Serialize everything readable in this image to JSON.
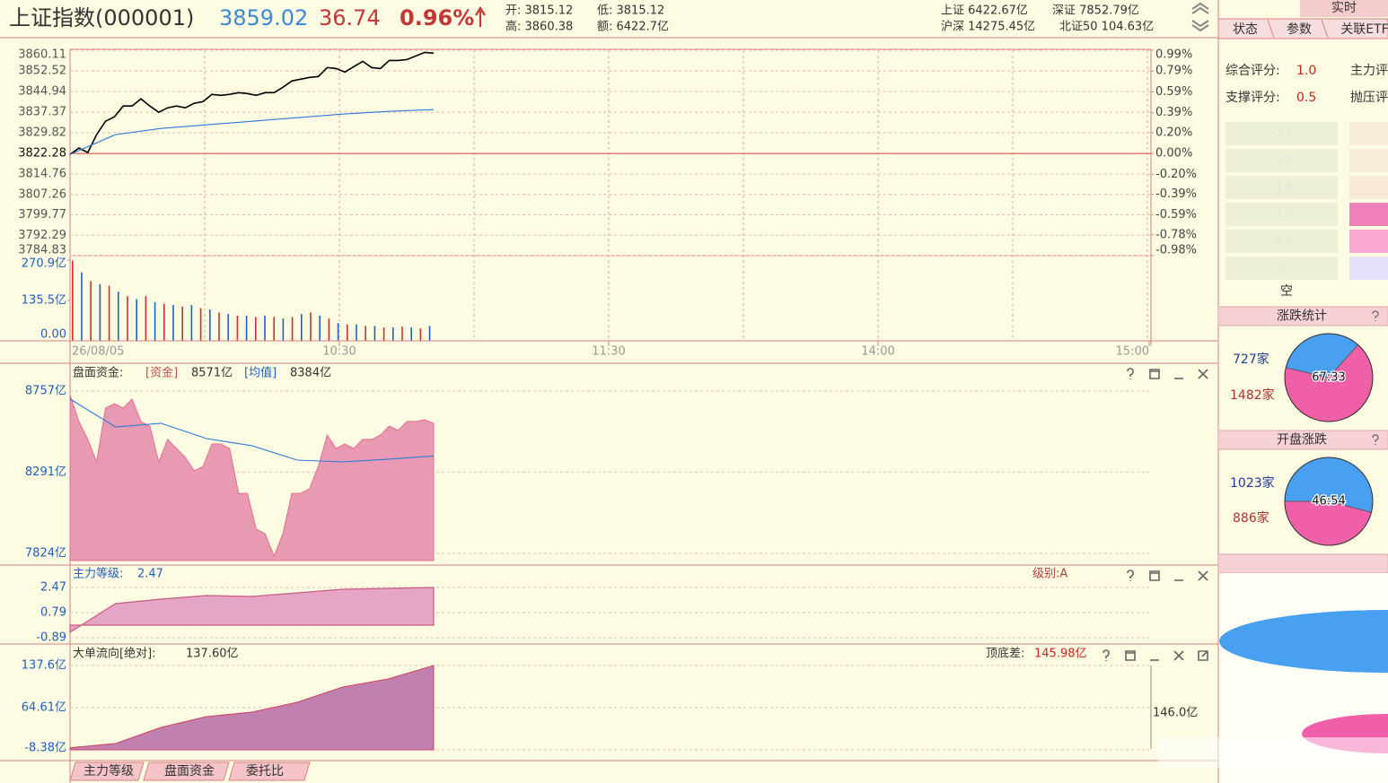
{
  "header": {
    "title": "上证指数(000001)",
    "price": 3859.02,
    "change": 36.74,
    "percent": "0.96%",
    "quote": [
      "开: 3815.12",
      "低: 3815.12",
      "高: 3860.38",
      "额: 6422.7亿"
    ],
    "market": [
      "上证 6422.67亿",
      "深证 7852.79亿",
      "沪深 14275.45亿",
      "北证50 104.63亿"
    ]
  },
  "price_chart": {
    "prev_close": 3822.28,
    "ylim": [
      3784.83,
      3860.11
    ],
    "yticks": [
      3860.11,
      3852.52,
      3844.94,
      3837.37,
      3829.82,
      3822.28,
      3814.76,
      3807.26,
      3799.77,
      3792.29,
      3784.83
    ],
    "y2lim": [
      -0.98,
      0.99
    ],
    "y2ticks": [
      {
        "value": 0.99,
        "label": "0.99%"
      },
      {
        "value": 0.79,
        "label": "0.79%"
      },
      {
        "value": 0.59,
        "label": "0.59%"
      },
      {
        "value": 0.39,
        "label": "0.39%"
      },
      {
        "value": 0.2,
        "label": "0.20%"
      },
      {
        "value": 0,
        "label": "0.00%"
      },
      {
        "value": -0.2,
        "label": "-0.20%"
      },
      {
        "value": -0.39,
        "label": "-0.39%"
      },
      {
        "value": -0.59,
        "label": "-0.59%"
      },
      {
        "value": -0.78,
        "label": "-0.78%"
      },
      {
        "value": -0.98,
        "label": "-0.98%"
      }
    ],
    "series": [
      {
        "color": "#000000",
        "values": [
          3821.95,
          3824.25,
          3822.61,
          3829.16,
          3834.08,
          3835.72,
          3839.65,
          3839.65,
          3842.28,
          3839.65,
          3837.36,
          3839.0,
          3839.65,
          3839.0,
          3840.64,
          3841.29,
          3843.92,
          3843.59,
          3843.92,
          3844.57,
          3844.24,
          3843.59,
          3844.57,
          3844.57,
          3846.54,
          3848.83,
          3849.49,
          3850.15,
          3850.47,
          3853.75,
          3853.42,
          3852.11,
          3854.08,
          3856.04,
          3853.75,
          3853.42,
          3856.37,
          3856.37,
          3856.7,
          3858.01,
          3859.32,
          3859.02
        ]
      },
      {
        "color": "#2a7ad8",
        "values": [
          3821.95,
          3829.16,
          3831.46,
          3832.77,
          3834.08,
          3835.39,
          3836.7,
          3837.69,
          3838.34
        ]
      }
    ],
    "time_labels": [
      "26/08/05",
      "10:30",
      "11:30",
      "14:00",
      "15:00"
    ]
  },
  "volume_chart": {
    "ylim": [
      0,
      270.9
    ],
    "yticks": [
      {
        "value": 270.9,
        "label": "270.9亿"
      },
      {
        "value": 135.5,
        "label": "135.5亿"
      },
      {
        "value": 0,
        "label": "0.00"
      }
    ],
    "colors": [
      "#d03030",
      "#2060c0"
    ],
    "values": [
      270,
      230,
      200,
      190,
      185,
      165,
      150,
      140,
      150,
      130,
      125,
      120,
      115,
      120,
      110,
      105,
      95,
      90,
      85,
      85,
      80,
      85,
      80,
      75,
      80,
      90,
      95,
      85,
      75,
      60,
      55,
      55,
      50,
      50,
      45,
      45,
      48,
      45,
      42,
      50
    ]
  },
  "capital_chart": {
    "label": "盘面资金:",
    "fund_tag": "[资金]",
    "fund": "8571亿",
    "avg_tag": "[均值]",
    "avg": "8384亿",
    "ylim": [
      7824,
      8757
    ],
    "yticks": [
      {
        "value": 8757,
        "label": "8757亿"
      },
      {
        "value": 8291,
        "label": "8291亿"
      },
      {
        "value": 7824,
        "label": "7824亿"
      }
    ],
    "series": [
      {
        "color": "#e07090",
        "values": [
          8736,
          8582,
          8479,
          8350,
          8659,
          8685,
          8659,
          8711,
          8582,
          8556,
          8350,
          8479,
          8427,
          8376,
          8298,
          8324,
          8453,
          8453,
          8427,
          8169,
          8169,
          7963,
          7937,
          7808,
          7937,
          8169,
          8169,
          8195,
          8324,
          8504,
          8427,
          8453,
          8427,
          8479,
          8479,
          8504,
          8556,
          8530,
          8582,
          8582,
          8592,
          8571
        ]
      },
      {
        "color": "#2a7ad8",
        "values": [
          8711,
          8551,
          8572,
          8484,
          8443,
          8360,
          8350,
          8366,
          8384
        ]
      }
    ]
  },
  "level_chart": {
    "label": "主力等级:",
    "value": 2.47,
    "grade": "级别:A",
    "ylim": [
      -0.89,
      2.47
    ],
    "yticks": [
      2.47,
      0.79,
      -0.89
    ],
    "color": "#c85c84",
    "values": [
      -0.53,
      1.39,
      1.69,
      1.93,
      1.87,
      2.11,
      2.35,
      2.41,
      2.47
    ]
  },
  "flow_chart": {
    "label": "大单流向[绝对]:",
    "value": "137.60亿",
    "diff_label": "顶底差:",
    "diff": "145.98亿",
    "side_label": "146.0亿",
    "ylim": [
      -8.38,
      137.6
    ],
    "yticks": [
      {
        "value": 137.6,
        "label": "137.6亿"
      },
      {
        "value": 64.61,
        "label": "64.61亿"
      },
      {
        "value": -8.38,
        "label": "-8.38亿"
      }
    ],
    "color": "#c080b0",
    "values": [
      -5,
      2.5,
      30.4,
      49.1,
      56.8,
      73.9,
      100.3,
      114.3,
      137.6
    ]
  },
  "bottom_tabs": [
    "主力等级",
    "盘面资金",
    "委托比"
  ],
  "side_panel": {
    "title": "实时",
    "tabs": [
      "状态",
      "参数",
      "关联ETF"
    ],
    "scores": [
      "综合评分:",
      "1.0",
      "主力评",
      "支撑评分:",
      "0.5",
      "抛压评"
    ],
    "levels": [
      "-2.5",
      "-2.0",
      "-1.5",
      "-1.0",
      "-0.5",
      "0"
    ],
    "empty": "空",
    "stats": [
      {
        "title": "涨跌统计",
        "label": "67:33",
        "up": "727家",
        "down": "1482家",
        "values": [
          67,
          33
        ]
      },
      {
        "title": "开盘涨跌",
        "label": "46:54",
        "up": "1023家",
        "down": "886家",
        "values": [
          46,
          54
        ]
      }
    ],
    "colors": [
      "#f060a8",
      "#4aa0f0"
    ]
  }
}
